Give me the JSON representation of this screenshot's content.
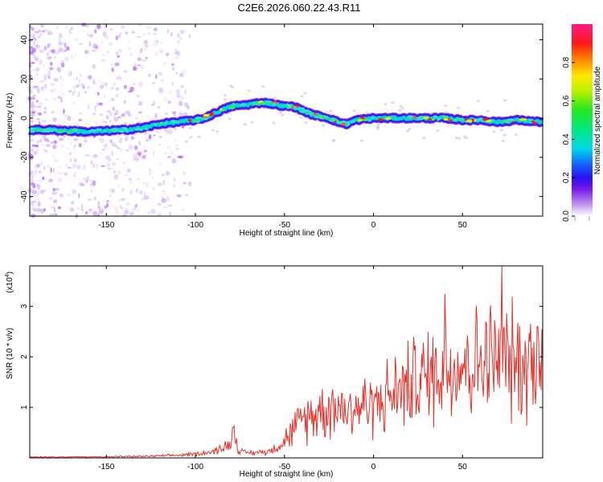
{
  "title": "C2E6.2026.060.22.43.R11",
  "chart_data": [
    {
      "type": "heatmap",
      "xlabel": "Height of straight line (km)",
      "ylabel": "Frequency (Hz)",
      "xlim": [
        -193,
        95
      ],
      "ylim": [
        -50,
        48
      ],
      "xticks": [
        -150,
        -100,
        -50,
        0,
        50
      ],
      "yticks": [
        -40,
        -20,
        0,
        20,
        40
      ],
      "ridge": {
        "description": "peak frequency vs height",
        "x": [
          -193,
          -180,
          -160,
          -140,
          -130,
          -120,
          -110,
          -100,
          -95,
          -88,
          -80,
          -70,
          -62,
          -55,
          -50,
          -45,
          -40,
          -35,
          -30,
          -25,
          -20,
          -15,
          -10,
          0,
          10,
          20,
          30,
          40,
          50,
          60,
          70,
          80,
          95
        ],
        "y": [
          -6,
          -6,
          -7,
          -6,
          -5,
          -3,
          -2,
          -1,
          0,
          3,
          6,
          7,
          8,
          7,
          6,
          6,
          4,
          2,
          1,
          0,
          -2,
          -3,
          -1,
          0,
          0,
          0,
          0,
          0,
          -1,
          -1,
          -2,
          -1,
          -2
        ]
      },
      "colorbar": {
        "label": "Normalized spectral amplitude",
        "ticks": [
          "0.0",
          "0.2",
          "0.4",
          "0.6",
          "0.8"
        ],
        "range": [
          0,
          1
        ]
      }
    },
    {
      "type": "line",
      "xlabel": "Height of straight line (km)",
      "ylabel": "SNR (10 * v/v)",
      "y_exponent": "(x10",
      "y_exponent_power": "4",
      "xlim": [
        -193,
        95
      ],
      "ylim": [
        0,
        3.8
      ],
      "xticks": [
        -150,
        -100,
        -50,
        0,
        50
      ],
      "yticks": [
        1,
        2,
        3
      ],
      "series": [
        {
          "name": "SNR",
          "color": "#e8302a",
          "x": [
            -193,
            -160,
            -130,
            -110,
            -100,
            -90,
            -85,
            -80,
            -78,
            -75,
            -70,
            -60,
            -55,
            -50,
            -45,
            -40,
            -35,
            -30,
            -25,
            -20,
            -15,
            -10,
            -5,
            0,
            5,
            10,
            15,
            20,
            25,
            30,
            35,
            40,
            45,
            50,
            55,
            60,
            65,
            70,
            75,
            80,
            85,
            90,
            95
          ],
          "y": [
            0.02,
            0.02,
            0.03,
            0.05,
            0.08,
            0.12,
            0.2,
            0.28,
            0.5,
            0.12,
            0.1,
            0.12,
            0.2,
            0.35,
            0.55,
            0.75,
            0.85,
            0.95,
            1.0,
            1.05,
            0.95,
            1.0,
            1.05,
            1.05,
            1.15,
            1.25,
            1.35,
            1.45,
            1.55,
            1.6,
            1.7,
            1.8,
            1.85,
            1.9,
            1.85,
            1.9,
            1.95,
            1.9,
            1.95,
            1.85,
            1.9,
            1.95,
            1.85
          ],
          "peaks": [
            {
              "x": -79,
              "y": 0.6
            },
            {
              "x": 40,
              "y": 3.25
            },
            {
              "x": 72,
              "y": 3.8
            },
            {
              "x": 92,
              "y": 2.6
            }
          ]
        }
      ]
    }
  ]
}
